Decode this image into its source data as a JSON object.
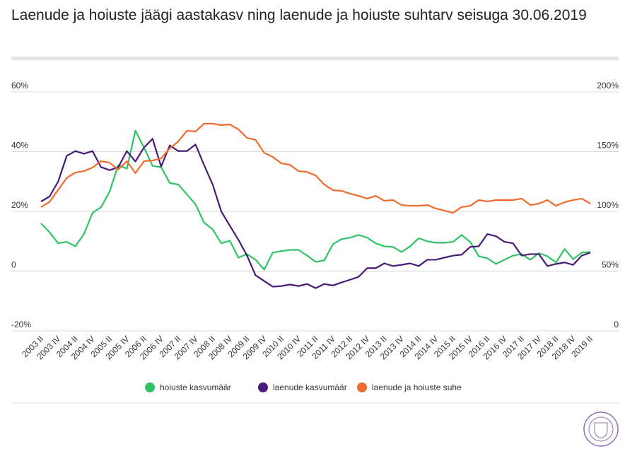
{
  "chart_data": {
    "type": "line",
    "title": "Laenude ja hoiuste jäägi aastakasv ning laenude ja hoiuste suhtarv seisuga 30.06.2019",
    "categories": [
      "2003 II",
      null,
      "2003 IV",
      null,
      "2004 II",
      null,
      "2004 IV",
      null,
      "2005 II",
      null,
      "2005 IV",
      null,
      "2006 II",
      null,
      "2006 IV",
      null,
      "2007 II",
      null,
      "2007 IV",
      null,
      "2008 II",
      null,
      "2008 IV",
      null,
      "2009 II",
      null,
      "2009 IV",
      null,
      "2010 II",
      null,
      "2010 IV",
      null,
      "2011 II",
      null,
      "2011 IV",
      null,
      "2012 II",
      null,
      "2012 IV",
      null,
      "2013 II",
      null,
      "2013 IV",
      null,
      "2014 II",
      null,
      "2014 IV",
      null,
      "2015 II",
      null,
      "2015 IV",
      null,
      "2016 II",
      null,
      "2016 IV",
      null,
      "2017 II",
      null,
      "2017 IV",
      null,
      "2018 II",
      null,
      "2018 IV",
      null,
      "2019 II"
    ],
    "series": [
      {
        "name": "hoiuste kasvumäär",
        "color": "#2ec464",
        "values": [
          16,
          13,
          9.3,
          9.8,
          8.3,
          12.4,
          19.5,
          21.4,
          26.7,
          35.5,
          34.3,
          47,
          41.4,
          35.2,
          34.8,
          29.5,
          29,
          25.7,
          22.4,
          16.2,
          14,
          9.3,
          10.2,
          4.5,
          5.7,
          3.8,
          0.5,
          6.2,
          6.7,
          7.1,
          7.1,
          5.2,
          3.1,
          3.6,
          9,
          10.7,
          11.2,
          12.1,
          11.2,
          9.3,
          8.3,
          8.1,
          6.4,
          8.3,
          11,
          10,
          9.5,
          9.5,
          9.8,
          12.1,
          9.8,
          5,
          4.3,
          2.4,
          3.8,
          5.2,
          5.7,
          3.8,
          6,
          5,
          2.9,
          7.4,
          4,
          6.2,
          6.4
        ]
      },
      {
        "name": "laenude kasvumäär",
        "color": "#4a1a78",
        "values": [
          23.3,
          25,
          30,
          38.6,
          40.2,
          39.3,
          40.2,
          34.8,
          33.8,
          34.8,
          40.2,
          36.7,
          41.4,
          44.3,
          35,
          42.1,
          40.2,
          40.2,
          42.4,
          35.5,
          29,
          20,
          15.2,
          10.5,
          5.2,
          -1.4,
          -3.3,
          -5.2,
          -5,
          -4.5,
          -5,
          -4.3,
          -5.7,
          -4.3,
          -4.8,
          -3.8,
          -2.9,
          -1.9,
          1,
          1,
          2.6,
          1.7,
          2.1,
          2.6,
          1.7,
          3.8,
          3.8,
          4.5,
          5.2,
          5.5,
          8.1,
          8.3,
          12.4,
          11.7,
          9.8,
          9.3,
          5.2,
          5.7,
          5.7,
          1.7,
          2.4,
          2.9,
          2.1,
          5.2,
          6.2
        ]
      },
      {
        "name": "laenude ja hoiuste suhe",
        "color": "#f26a2c",
        "axis": "y2",
        "values": [
          103.6,
          108,
          118,
          128,
          132.5,
          133.7,
          136.7,
          142,
          140.8,
          135,
          142,
          132,
          142,
          142.6,
          144.4,
          152.7,
          158.6,
          167.5,
          166.9,
          173.4,
          173.4,
          172.2,
          172.8,
          168.6,
          161.5,
          159.8,
          149,
          145.6,
          140.2,
          139,
          133.7,
          133,
          130,
          122.5,
          117.8,
          117.2,
          114.8,
          113,
          110.7,
          113,
          108.9,
          109.5,
          105.3,
          104.7,
          104.7,
          105.3,
          102.4,
          100.6,
          98.8,
          103.6,
          104.7,
          109.5,
          108.3,
          109.5,
          109.5,
          109.5,
          110.7,
          105.3,
          106.5,
          109.5,
          104.7,
          107.7,
          109.5,
          110.7,
          106.5
        ]
      }
    ],
    "ylim": [
      -20,
      60
    ],
    "yticks": [
      {
        "value": -20,
        "label": "-20%"
      },
      0,
      {
        "value": 20,
        "label": "20%"
      },
      {
        "value": 40,
        "label": "40%"
      },
      {
        "value": 60,
        "label": "60%"
      }
    ],
    "y2lim": [
      0,
      200
    ],
    "y2ticks": [
      0,
      {
        "value": 50,
        "label": "50%"
      },
      {
        "value": 100,
        "label": "100%"
      },
      {
        "value": 150,
        "label": "150%"
      },
      {
        "value": 200,
        "label": "200%"
      }
    ],
    "grid": true,
    "legend": "bottom"
  }
}
